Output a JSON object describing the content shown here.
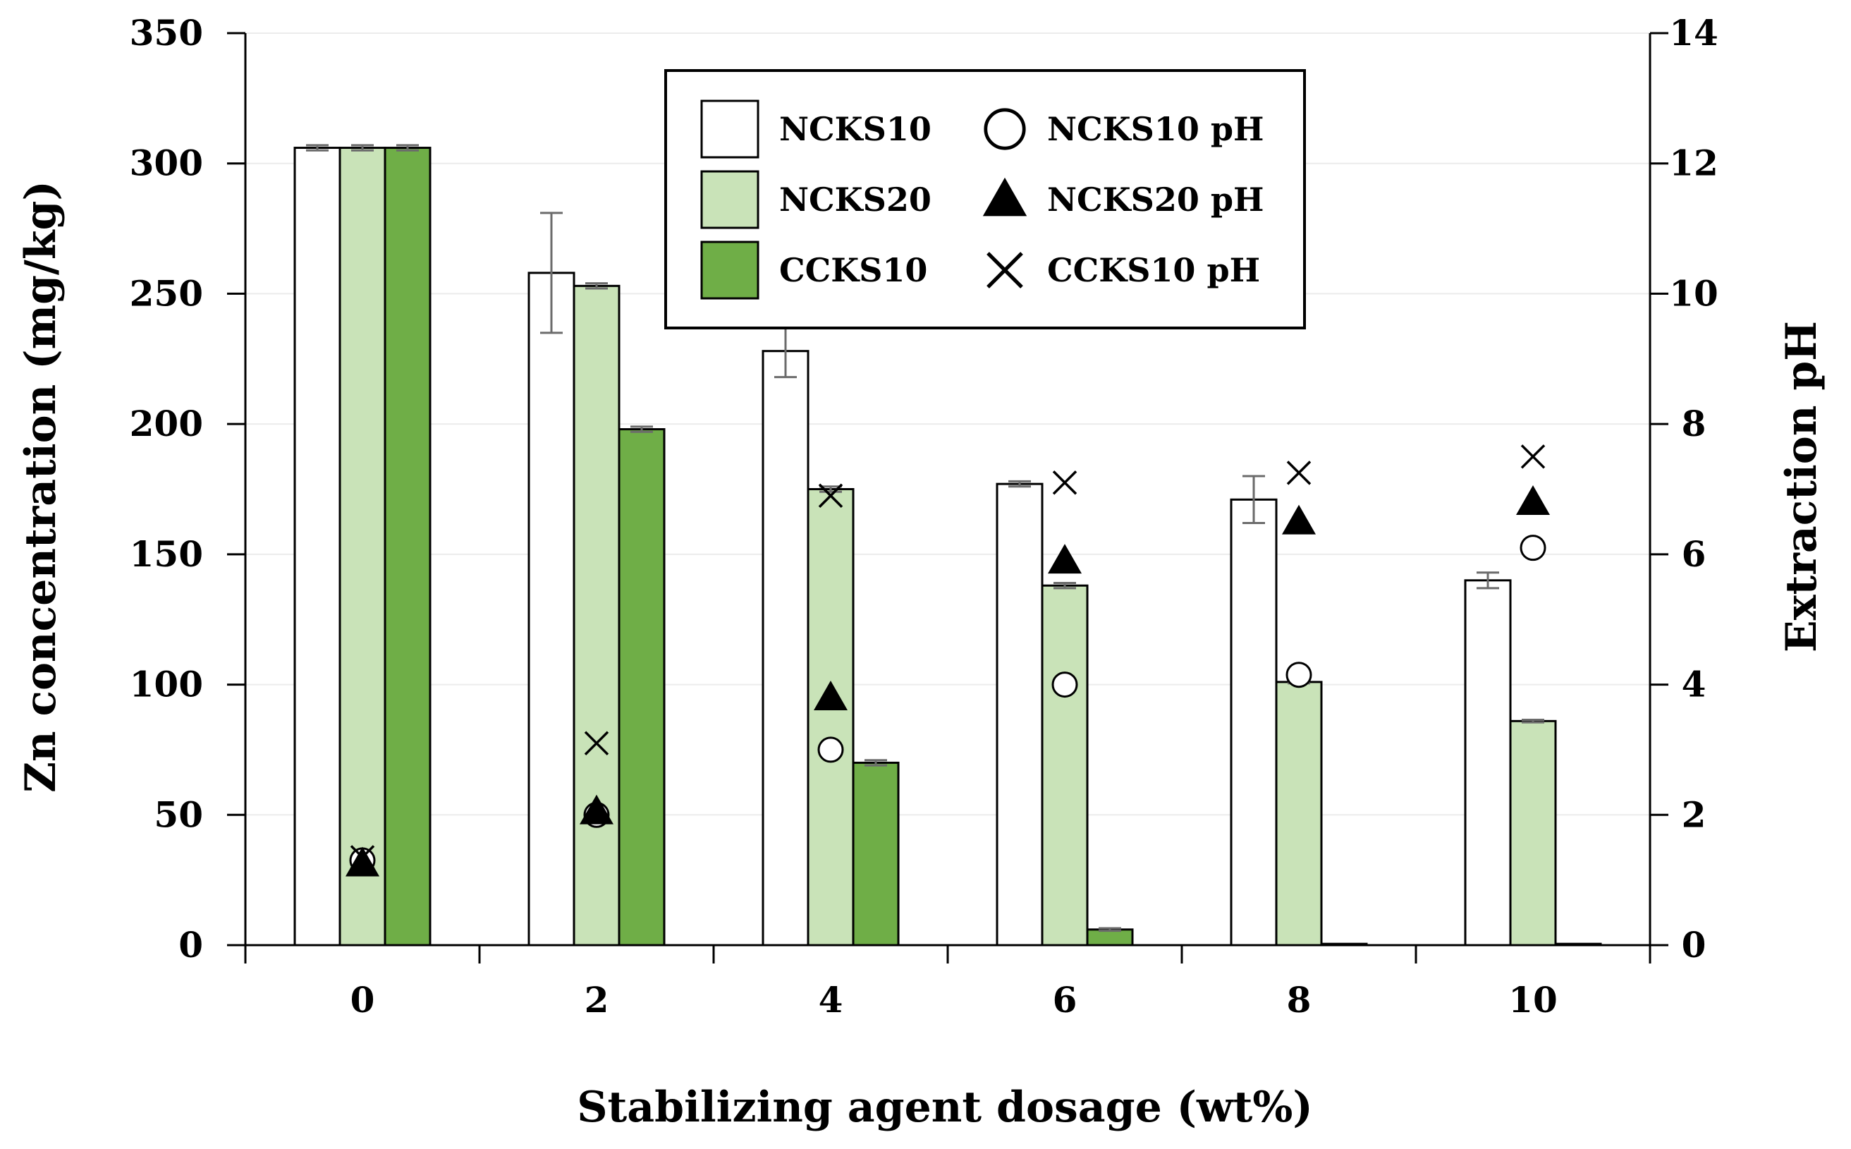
{
  "chart_data": {
    "type": "bar",
    "title": "",
    "xlabel": "Stabilizing agent dosage (wt%)",
    "ylabel": "Zn concentration (mg/kg)",
    "y2label": "Extraction pH",
    "categories": [
      "0",
      "2",
      "4",
      "6",
      "8",
      "10"
    ],
    "ylim": [
      0,
      350
    ],
    "yticks": [
      0,
      50,
      100,
      150,
      200,
      250,
      300,
      350
    ],
    "y2lim": [
      0,
      14
    ],
    "y2ticks": [
      0,
      2,
      4,
      6,
      8,
      10,
      12,
      14
    ],
    "grid": true,
    "legend_position": "top-center",
    "series": [
      {
        "name": "NCKS10",
        "kind": "bar",
        "fill": "#ffffff",
        "values": [
          306,
          258,
          228,
          177,
          171,
          140
        ],
        "errors": [
          1,
          23,
          10,
          1,
          9,
          3
        ]
      },
      {
        "name": "NCKS20",
        "kind": "bar",
        "fill": "#c9e3b8",
        "values": [
          306,
          253,
          175,
          138,
          101,
          86
        ],
        "errors": [
          1,
          1,
          1,
          1,
          0.5,
          0.5
        ]
      },
      {
        "name": "CCKS10",
        "kind": "bar",
        "fill": "#6fae47",
        "values": [
          306,
          198,
          70,
          6,
          0.5,
          0.5
        ],
        "errors": [
          1,
          1,
          1,
          0.5,
          0,
          0
        ]
      }
    ],
    "ph_series": [
      {
        "name": "NCKS10 pH",
        "marker": "circle",
        "values": [
          1.3,
          2.0,
          3.0,
          4.0,
          4.15,
          6.1
        ]
      },
      {
        "name": "NCKS20 pH",
        "marker": "triangle",
        "values": [
          1.25,
          2.05,
          3.8,
          5.9,
          6.5,
          6.8
        ]
      },
      {
        "name": "CCKS10 pH",
        "marker": "x",
        "values": [
          1.35,
          3.1,
          6.9,
          7.1,
          7.25,
          7.5
        ]
      }
    ]
  }
}
